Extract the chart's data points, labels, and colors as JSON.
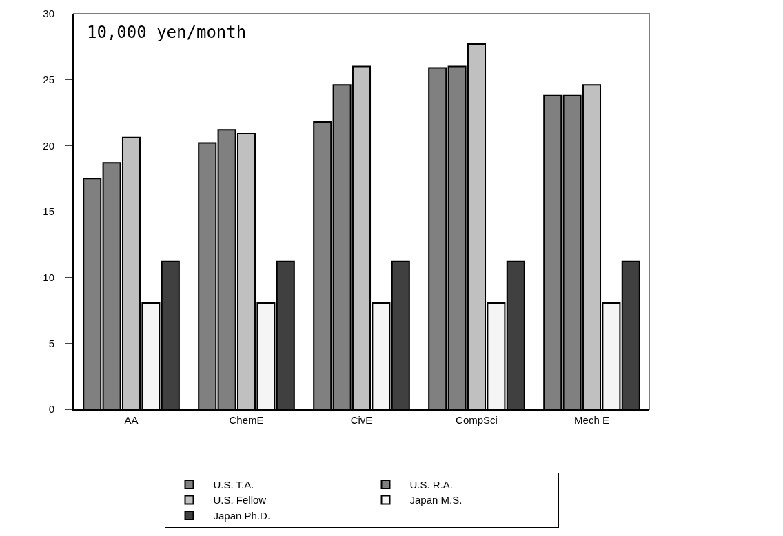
{
  "chart_data": {
    "type": "bar",
    "categories": [
      "AA",
      "ChemE",
      "CivE",
      "CompSci",
      "Mech E"
    ],
    "series": [
      {
        "name": "U.S. T.A.",
        "color": "#808080",
        "values": [
          17.5,
          20.2,
          21.8,
          25.9,
          23.8
        ]
      },
      {
        "name": "U.S. R.A.",
        "color": "#808080",
        "values": [
          18.7,
          21.2,
          24.6,
          26.0,
          23.8
        ]
      },
      {
        "name": "U.S. Fellow",
        "color": "#c0c0c0",
        "values": [
          20.6,
          20.9,
          26.0,
          27.7,
          24.6
        ]
      },
      {
        "name": "Japan M.S.",
        "color": "#f5f5f5",
        "values": [
          8.05,
          8.05,
          8.05,
          8.05,
          8.05
        ]
      },
      {
        "name": "Japan Ph.D.",
        "color": "#404040",
        "values": [
          11.2,
          11.2,
          11.2,
          11.2,
          11.2
        ]
      }
    ],
    "ylim": [
      0,
      30
    ],
    "yticks": [
      0,
      5,
      10,
      15,
      20,
      25,
      30
    ],
    "grid": false,
    "legend": "bottom",
    "annotations": [
      "10,000 yen/month"
    ]
  }
}
